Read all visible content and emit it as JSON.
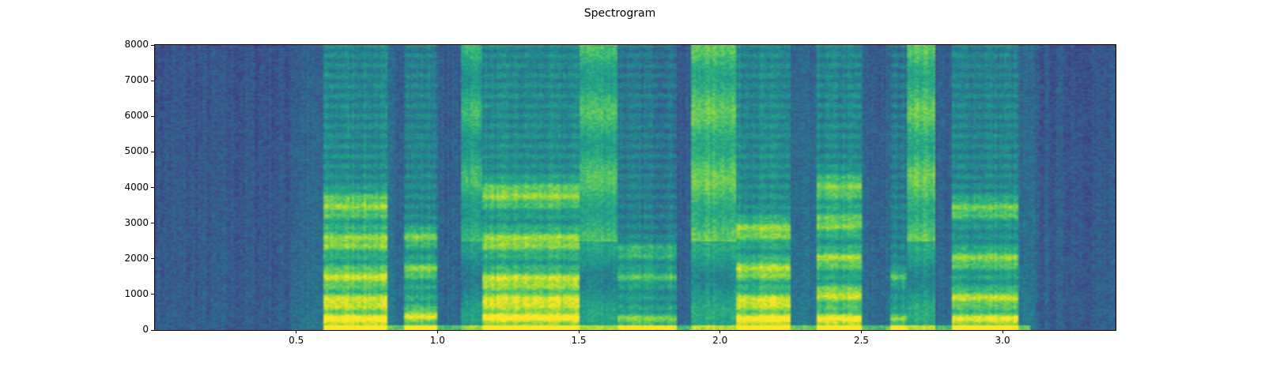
{
  "chart_data": {
    "type": "heatmap",
    "title": "Spectrogram",
    "xlabel": "",
    "ylabel": "",
    "xlim": [
      0,
      3.4
    ],
    "ylim": [
      0,
      8000
    ],
    "xticks": [
      "0.5",
      "1.0",
      "1.5",
      "2.0",
      "2.5",
      "3.0"
    ],
    "xtick_values": [
      0.5,
      1.0,
      1.5,
      2.0,
      2.5,
      3.0
    ],
    "yticks": [
      "0",
      "1000",
      "2000",
      "3000",
      "4000",
      "5000",
      "6000",
      "7000",
      "8000"
    ],
    "ytick_values": [
      0,
      1000,
      2000,
      3000,
      4000,
      5000,
      6000,
      7000,
      8000
    ],
    "colormap": "viridis",
    "grid": false,
    "segments": [
      {
        "start": 0.0,
        "end": 0.48,
        "kind": "silence",
        "level": 0.0
      },
      {
        "start": 0.48,
        "end": 0.6,
        "kind": "gap",
        "level": 0.4
      },
      {
        "start": 0.6,
        "end": 0.82,
        "kind": "voiced",
        "level": 0.9,
        "formants": [
          300,
          800,
          1500,
          2500,
          3500
        ]
      },
      {
        "start": 0.82,
        "end": 0.88,
        "kind": "gap",
        "level": 0.5
      },
      {
        "start": 0.88,
        "end": 1.0,
        "kind": "voiced",
        "level": 0.8,
        "formants": [
          400,
          1700,
          2600
        ]
      },
      {
        "start": 1.0,
        "end": 1.08,
        "kind": "gap",
        "level": 0.2
      },
      {
        "start": 1.08,
        "end": 1.16,
        "kind": "fricative",
        "level": 0.8
      },
      {
        "start": 1.16,
        "end": 1.5,
        "kind": "voiced",
        "level": 0.9,
        "formants": [
          350,
          800,
          1400,
          2500,
          3800
        ]
      },
      {
        "start": 1.5,
        "end": 1.64,
        "kind": "fricative",
        "level": 0.9
      },
      {
        "start": 1.64,
        "end": 1.85,
        "kind": "voiced",
        "level": 0.6,
        "formants": [
          300,
          1500,
          2200
        ]
      },
      {
        "start": 1.85,
        "end": 1.9,
        "kind": "gap",
        "level": 0.2
      },
      {
        "start": 1.9,
        "end": 2.06,
        "kind": "fricative",
        "level": 1.0
      },
      {
        "start": 2.06,
        "end": 2.25,
        "kind": "voiced",
        "level": 0.9,
        "formants": [
          300,
          800,
          1700,
          2800
        ]
      },
      {
        "start": 2.25,
        "end": 2.34,
        "kind": "gap",
        "level": 0.45
      },
      {
        "start": 2.34,
        "end": 2.5,
        "kind": "voiced",
        "level": 0.85,
        "formants": [
          300,
          1000,
          2000,
          3000,
          4000
        ]
      },
      {
        "start": 2.5,
        "end": 2.6,
        "kind": "gap",
        "level": 0.3
      },
      {
        "start": 2.6,
        "end": 2.66,
        "kind": "voiced",
        "level": 0.6,
        "formants": [
          300,
          1500
        ]
      },
      {
        "start": 2.66,
        "end": 2.76,
        "kind": "fricative",
        "level": 1.0
      },
      {
        "start": 2.76,
        "end": 2.82,
        "kind": "gap",
        "level": 0.3
      },
      {
        "start": 2.82,
        "end": 3.06,
        "kind": "voiced",
        "level": 0.8,
        "formants": [
          300,
          900,
          2000,
          3400
        ]
      },
      {
        "start": 3.06,
        "end": 3.12,
        "kind": "gap",
        "level": 0.45
      },
      {
        "start": 3.12,
        "end": 3.4,
        "kind": "silence",
        "level": 0.15
      }
    ]
  }
}
